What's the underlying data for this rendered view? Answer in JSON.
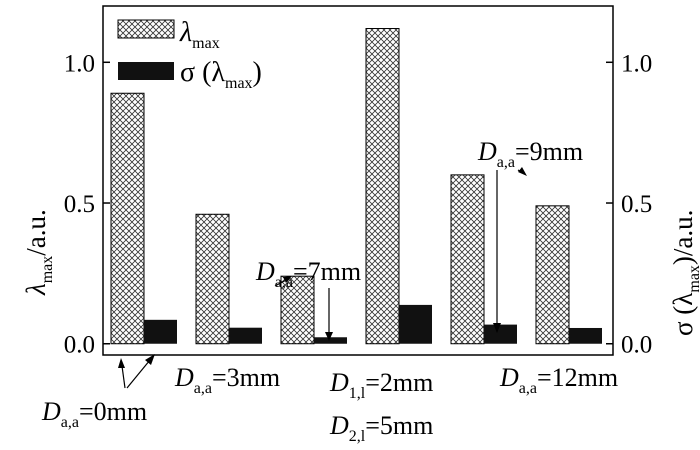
{
  "chart_data": {
    "type": "bar",
    "categories": [
      "D_a,a=0mm",
      "D_a,a=3mm",
      "D_a,a=7mm",
      "D_1,l=2mm D_2,l=5mm",
      "D_a,a=9mm",
      "D_a,a=12mm"
    ],
    "series": [
      {
        "name": "λmax",
        "pattern": "crosshatch",
        "values": [
          0.89,
          0.46,
          0.24,
          1.12,
          0.6,
          0.49
        ]
      },
      {
        "name": "σ(λmax)",
        "color": "#111111",
        "values": [
          0.085,
          0.057,
          0.023,
          0.138,
          0.068,
          0.056
        ]
      }
    ],
    "ylim": [
      -0.04,
      1.2
    ],
    "y_ticks": [
      0.0,
      0.5,
      1.0
    ],
    "y_tick_labels": [
      "0.0",
      "0.5",
      "1.0"
    ],
    "ylabel_left": {
      "main": "λ",
      "sub": "max",
      "suffix": "/a.u."
    },
    "ylabel_right": {
      "prefix": "σ (λ",
      "sub": "max",
      "suffix": ")/a.u."
    },
    "legend_position": "top-left",
    "legend": [
      {
        "main": "λ",
        "sub": "max"
      },
      {
        "prefix": "σ (λ",
        "sub": "max",
        "suffix": ")"
      }
    ],
    "annotations": [
      {
        "id": "a0",
        "main": "D",
        "sub": "a,a",
        "suffix": "=0mm"
      },
      {
        "id": "a3",
        "main": "D",
        "sub": "a,a",
        "suffix": "=3mm"
      },
      {
        "id": "a7",
        "main": "D",
        "sub": "a,a",
        "suffix": "=7mm"
      },
      {
        "id": "a9",
        "main": "D",
        "sub": "a,a",
        "suffix": "=9mm"
      },
      {
        "id": "a12",
        "main": "D",
        "sub": "a,a",
        "suffix": "=12mm"
      },
      {
        "id": "l1",
        "main": "D",
        "sub": "1,l",
        "suffix": "=2mm"
      },
      {
        "id": "l2",
        "main": "D",
        "sub": "2,l",
        "suffix": "=5mm"
      }
    ]
  }
}
